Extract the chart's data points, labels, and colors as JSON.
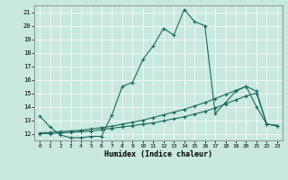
{
  "xlabel": "Humidex (Indice chaleur)",
  "xlim": [
    -0.5,
    23.5
  ],
  "ylim": [
    11.5,
    21.5
  ],
  "xticks": [
    0,
    1,
    2,
    3,
    4,
    5,
    6,
    7,
    8,
    9,
    10,
    11,
    12,
    13,
    14,
    15,
    16,
    17,
    18,
    19,
    20,
    21,
    22,
    23
  ],
  "yticks": [
    12,
    13,
    14,
    15,
    16,
    17,
    18,
    19,
    20,
    21
  ],
  "bg_color": "#c8e8e0",
  "line_color": "#1a6b5a",
  "line1_x": [
    0,
    1,
    2,
    3,
    4,
    5,
    6,
    7,
    8,
    9,
    10,
    11,
    12,
    13,
    14,
    15,
    16,
    17,
    18,
    19,
    20,
    21,
    22,
    23
  ],
  "line1_y": [
    13.3,
    12.5,
    11.9,
    11.7,
    11.7,
    11.8,
    11.8,
    13.4,
    15.5,
    15.8,
    17.5,
    18.5,
    19.8,
    19.3,
    21.2,
    20.3,
    20.0,
    13.5,
    14.3,
    15.15,
    15.5,
    14.0,
    12.7,
    12.6
  ],
  "line2_x": [
    0,
    1,
    2,
    3,
    4,
    5,
    6,
    7,
    8,
    9,
    10,
    11,
    12,
    13,
    14,
    15,
    16,
    17,
    18,
    19,
    20,
    21,
    22,
    23
  ],
  "line2_y": [
    12.05,
    12.1,
    12.15,
    12.2,
    12.25,
    12.35,
    12.45,
    12.55,
    12.7,
    12.85,
    13.0,
    13.2,
    13.4,
    13.6,
    13.8,
    14.05,
    14.3,
    14.6,
    14.9,
    15.2,
    15.5,
    15.15,
    12.7,
    12.6
  ],
  "line3_x": [
    0,
    1,
    2,
    3,
    4,
    5,
    6,
    7,
    8,
    9,
    10,
    11,
    12,
    13,
    14,
    15,
    16,
    17,
    18,
    19,
    20,
    21,
    22,
    23
  ],
  "line3_y": [
    12.0,
    12.0,
    12.05,
    12.1,
    12.15,
    12.2,
    12.3,
    12.4,
    12.5,
    12.6,
    12.7,
    12.8,
    12.95,
    13.1,
    13.25,
    13.45,
    13.65,
    13.9,
    14.2,
    14.5,
    14.8,
    15.0,
    12.7,
    12.6
  ]
}
